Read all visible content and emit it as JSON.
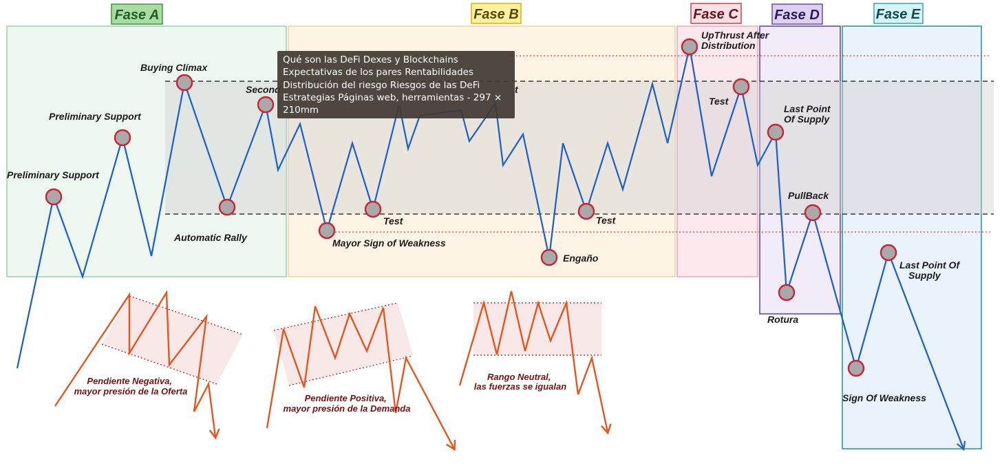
{
  "phases": [
    {
      "id": "a",
      "title": "Fase A",
      "fill": "#e8f4ea",
      "stroke": "#7fc8a0",
      "title_fill": "#a8dca0",
      "title_stroke": "#3a9a3a",
      "text_color": "#1f5d2a"
    },
    {
      "id": "b",
      "title": "Fase B",
      "fill": "#fdf0dc",
      "stroke": "#f3c886",
      "title_fill": "#fff1a0",
      "title_stroke": "#e0b000",
      "text_color": "#5a4500"
    },
    {
      "id": "c",
      "title": "Fase C",
      "fill": "#fbe2e8",
      "stroke": "#ee90a8",
      "title_fill": "#fde0e4",
      "title_stroke": "#d04050",
      "text_color": "#6a1020"
    },
    {
      "id": "d",
      "title": "Fase D",
      "fill": "#ece6f4",
      "stroke": "#6a48b0",
      "title_fill": "#ddd0f0",
      "title_stroke": "#6a48b0",
      "text_color": "#2a1a55"
    },
    {
      "id": "e",
      "title": "Fase E",
      "fill": "#e3eefa",
      "stroke": "#2a9aa0",
      "title_fill": "#d4f4f6",
      "title_stroke": "#30a8b0",
      "text_color": "#10484c"
    }
  ],
  "labels": {
    "ps1": "Preliminary Support",
    "ps2": "Preliminary Support",
    "bc": "Buying Clímax",
    "ar": "Automatic Rally",
    "st_partial": "Second",
    "st_partial2": "t",
    "msow": "Mayor Sign of Weakness",
    "test_b1": "Test",
    "test_b2": "Test",
    "engano": "Engaño",
    "utad": [
      "UpThrust After",
      "Distribution"
    ],
    "test_c": "Test",
    "lps_d": [
      "Last Point",
      "Of Supply"
    ],
    "pullback": "PullBack",
    "rotura": "Rotura",
    "sow": "Sign Of Weakness",
    "lps_e": [
      "Last Point Of",
      "Supply"
    ]
  },
  "patterns": {
    "negative": [
      "Pendiente Negativa,",
      "mayor presión de la Oferta"
    ],
    "positive": [
      "Pendiente Positiva,",
      "mayor presión de la Demanda"
    ],
    "neutral": [
      "Rango Neutral,",
      "las fuerzas se igualan"
    ]
  },
  "tooltip": {
    "lines": [
      "Qué son las DeFi Dexes y Blockchains",
      "Expectativas de los pares Rentabilidades",
      "Distribución del riesgo Riesgos de las DeFi",
      "Estrategias Páginas web, herramientas - 297 ×",
      "210mm"
    ]
  },
  "colors": {
    "price_line": "#1f63c8",
    "pattern_line": "#e8551b",
    "marker_fill": "#a9a9a9",
    "marker_stroke": "#cc2233",
    "range_band": "#cfcfcf",
    "dashed_red": "#e04040"
  }
}
